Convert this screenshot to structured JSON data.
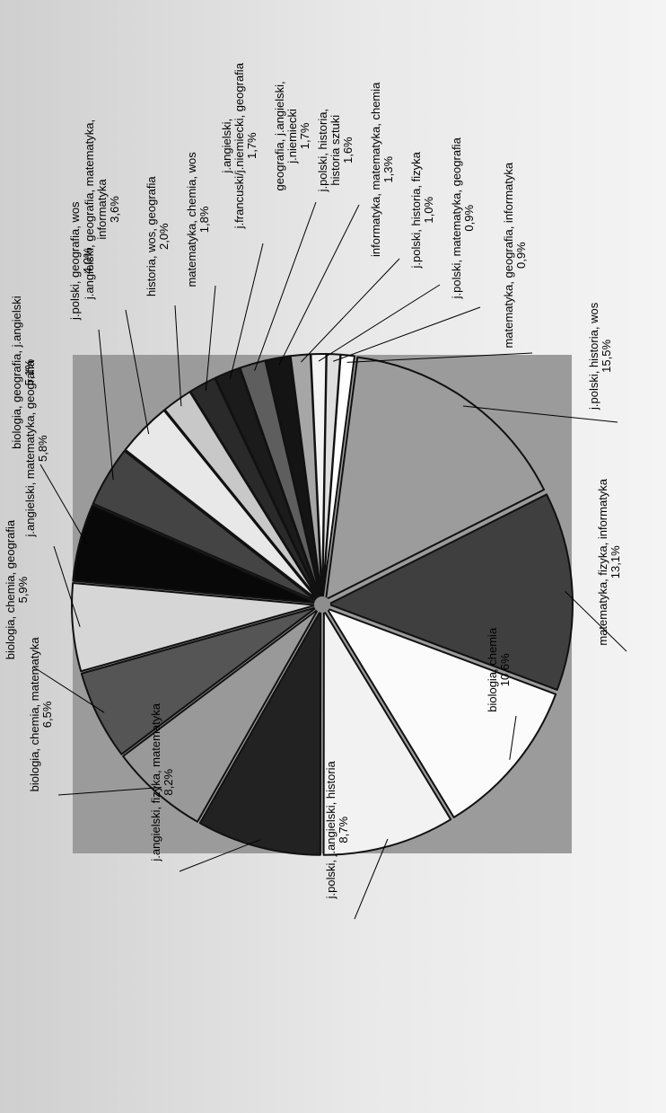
{
  "chart_data": {
    "type": "pie",
    "orientation": "rotated-90-ccw",
    "label_format": "name, percent",
    "colors": {
      "page_background": "#e6e6e6",
      "plot_area": "#9b9b9b",
      "gap": "#8e8e8e",
      "slice_border": "#111111"
    },
    "slices": [
      {
        "label": "j.polski, historia, wos",
        "percent": "15,5%",
        "value": 15.5,
        "color": "#9c9c9c"
      },
      {
        "label": "matematyka, fizyka, informatyka",
        "percent": "13,1%",
        "value": 13.1,
        "color": "#3f3f3f"
      },
      {
        "label": "biologia, chemia",
        "percent": "10,6%",
        "value": 10.6,
        "color": "#fbfbfb"
      },
      {
        "label": "j.polski, j.angielski, historia",
        "percent": "8,7%",
        "value": 8.7,
        "color": "#f2f2f2"
      },
      {
        "label": "j.angielski, fizyka, matematyka",
        "percent": "8,2%",
        "value": 8.2,
        "color": "#222222"
      },
      {
        "label": "biologia, chemia, matematyka",
        "percent": "6,5%",
        "value": 6.5,
        "color": "#999999"
      },
      {
        "label": "biologia, chemia, geografia",
        "percent": "5,9%",
        "value": 5.9,
        "color": "#555555"
      },
      {
        "label": "j.angielski, matematyka, geografia",
        "percent": "5,8%",
        "value": 5.8,
        "color": "#d6d6d6"
      },
      {
        "label": "biologia, geografia, j.angielski",
        "percent": "5,1%",
        "value": 5.1,
        "color": "#080808"
      },
      {
        "label": "j.polski, geografia, wos",
        "percent": "4,0%",
        "value": 4.0,
        "color": "#444444"
      },
      {
        "label": "j.angielski, geografia, matematyka, informatyka",
        "percent": "3,6%",
        "value": 3.6,
        "color": "#e8e8e8"
      },
      {
        "label": "historia, wos, geografia",
        "percent": "2,0%",
        "value": 2.0,
        "color": "#c8c8c8"
      },
      {
        "label": "matematyka, chemia, wos",
        "percent": "1,8%",
        "value": 1.8,
        "color": "#2a2a2a"
      },
      {
        "label": "j.angielski, j.francuski/j.niemiecki, geografia",
        "percent": "1,7%",
        "value": 1.7,
        "color": "#1b1b1b"
      },
      {
        "label": "geografia, j.angielski, j.niemiecki",
        "percent": "1,7%",
        "value": 1.7,
        "color": "#5e5e5e"
      },
      {
        "label": "j.polski, historia, historia sztuki",
        "percent": "1,6%",
        "value": 1.6,
        "color": "#141414"
      },
      {
        "label": "informatyka, matematyka, chemia",
        "percent": "1,3%",
        "value": 1.3,
        "color": "#a6a6a6"
      },
      {
        "label": "j.polski, historia, fizyka",
        "percent": "1,0%",
        "value": 1.0,
        "color": "#f3f3f3"
      },
      {
        "label": "j.polski, matematyka, geografia",
        "percent": "0,9%",
        "value": 0.9,
        "color": "#dedede"
      },
      {
        "label": "matematyka, geografia, informatyka",
        "percent": "0,9%",
        "value": 0.9,
        "color": "#ffffff"
      }
    ]
  }
}
